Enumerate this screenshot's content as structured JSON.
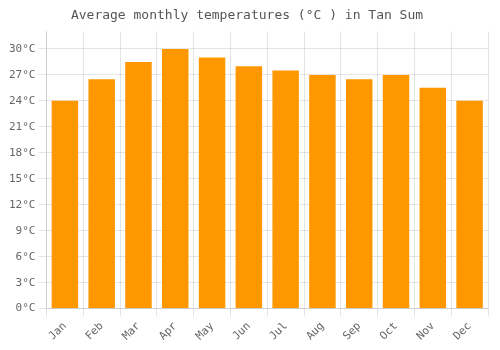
{
  "chart_data": {
    "type": "bar",
    "title": "Average monthly temperatures (°C ) in Tan Sum",
    "categories": [
      "Jan",
      "Feb",
      "Mar",
      "Apr",
      "May",
      "Jun",
      "Jul",
      "Aug",
      "Sep",
      "Oct",
      "Nov",
      "Dec"
    ],
    "values": [
      24,
      26.5,
      28.5,
      30,
      29,
      28,
      27.5,
      27,
      26.5,
      27,
      25.5,
      24
    ],
    "color": "#FF9800",
    "ylim": [
      0,
      32
    ],
    "yticks": [
      {
        "value": 0,
        "label": "0°C"
      },
      {
        "value": 3,
        "label": "3°C"
      },
      {
        "value": 6,
        "label": "6°C"
      },
      {
        "value": 9,
        "label": "9°C"
      },
      {
        "value": 12,
        "label": "12°C"
      },
      {
        "value": 15,
        "label": "15°C"
      },
      {
        "value": 18,
        "label": "18°C"
      },
      {
        "value": 21,
        "label": "21°C"
      },
      {
        "value": 24,
        "label": "24°C"
      },
      {
        "value": 27,
        "label": "27°C"
      },
      {
        "value": 30,
        "label": "30°C"
      }
    ],
    "grid": true
  }
}
